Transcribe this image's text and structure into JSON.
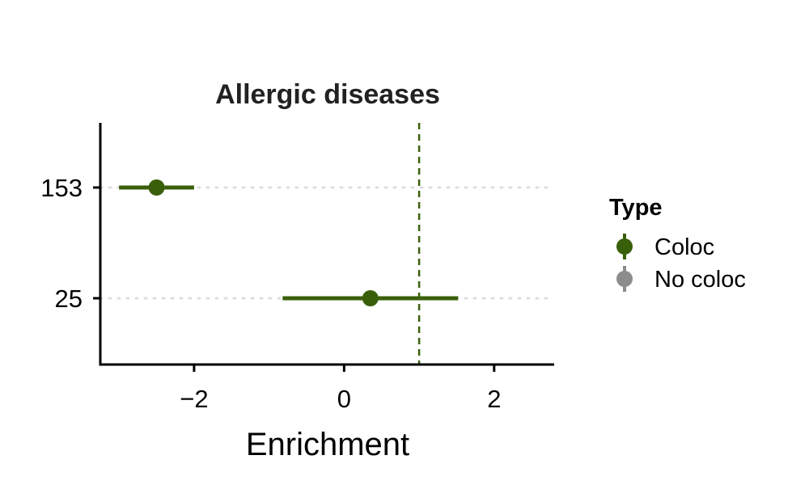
{
  "chart_data": {
    "type": "scatter",
    "title": "Allergic diseases",
    "xlabel": "Enrichment",
    "ylabel": "",
    "xlim": [
      -3.25,
      2.8
    ],
    "x_ticks": [
      -2,
      0,
      2
    ],
    "x_tick_labels": [
      "−2",
      "0",
      "2"
    ],
    "categories": [
      "153",
      "25"
    ],
    "reference_line": {
      "x": 1,
      "style": "dashed",
      "color": "#3a5f0b"
    },
    "grid": "horizontal dotted",
    "legend": {
      "title": "Type",
      "position": "right",
      "entries": [
        {
          "label": "Coloc",
          "color": "#3a5f0b"
        },
        {
          "label": "No coloc",
          "color": "#8c8c8c"
        }
      ]
    },
    "series": [
      {
        "name": "Coloc",
        "color": "#3a5f0b",
        "points": [
          {
            "category": "153",
            "x": -2.5,
            "lower": -3.0,
            "upper": -2.0
          },
          {
            "category": "25",
            "x": 0.35,
            "lower": -0.82,
            "upper": 1.52
          }
        ]
      },
      {
        "name": "No coloc",
        "color": "#8c8c8c",
        "points": []
      }
    ]
  }
}
